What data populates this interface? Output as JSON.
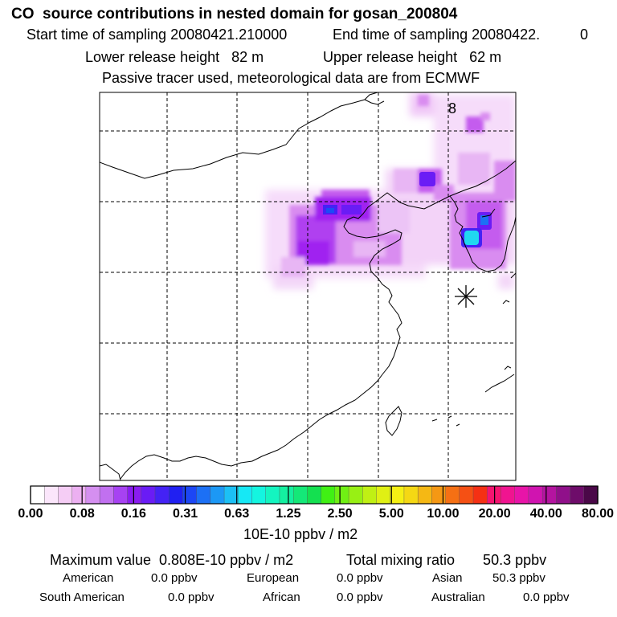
{
  "header": {
    "title": "CO  source contributions in nested domain for gosan_200804",
    "start_label": "Start time of sampling 20080421.210000",
    "end_label": "End time of sampling 20080422.",
    "end_value": "0",
    "lower_label": "Lower release height   82 m",
    "upper_label": "Upper release height   62 m",
    "tracer_note": "Passive tracer used, meteorological data are from ECMWF"
  },
  "map": {
    "corner_label": "8",
    "site_marker": "asterisk-icon",
    "contour_colors": [
      "#f6dcfa",
      "#eab8f5",
      "#d98cf0",
      "#c45cee",
      "#a020f0",
      "#6a1cf5",
      "#1c4cf5",
      "#20d8f0"
    ],
    "plume_levels": [
      {
        "name": "inland-plume",
        "level": 3
      },
      {
        "name": "korea-hotspot",
        "level": 7
      }
    ]
  },
  "colorbar": {
    "colors": [
      "#ffffff",
      "#fbe6fb",
      "#f5cdf5",
      "#ecb0f1",
      "#d58ff0",
      "#c170f0",
      "#a742f2",
      "#8a1cf0",
      "#6a1cf5",
      "#4422f5",
      "#2020f2",
      "#1c46f5",
      "#1c70f5",
      "#1c98f5",
      "#1cc0f5",
      "#16e8f5",
      "#14f5e0",
      "#14f5c0",
      "#14f0a0",
      "#14e878",
      "#14e050",
      "#40f014",
      "#70f014",
      "#98f014",
      "#c0f014",
      "#e0f014",
      "#f5f014",
      "#f5d814",
      "#f5b814",
      "#f59814",
      "#f57014",
      "#f55014",
      "#f53014",
      "#f51470",
      "#f01490",
      "#e814a8",
      "#d014b0",
      "#b414a0",
      "#90108a",
      "#6e0c6a",
      "#4a0848"
    ],
    "ticks": [
      "0.00",
      "0.08",
      "0.16",
      "0.31",
      "0.63",
      "1.25",
      "2.50",
      "5.00",
      "10.00",
      "20.00",
      "40.00",
      "80.00"
    ],
    "unit_label": "10E-10 ppbv / m2"
  },
  "footer": {
    "max_value": "Maximum value  0.808E-10 ppbv / m2",
    "total_mixing": "Total mixing ratio       50.3 ppbv",
    "american": "American",
    "american_value": "0.0 ppbv",
    "european": "European",
    "european_value": "0.0 ppbv",
    "asian": "Asian",
    "asian_value": "50.3 ppbv",
    "south_american": "South American",
    "south_american_value": "0.0 ppbv",
    "african": "African",
    "african_value": "0.0 ppbv",
    "australian": "Australian",
    "australian_value": "0.0 ppbv"
  }
}
